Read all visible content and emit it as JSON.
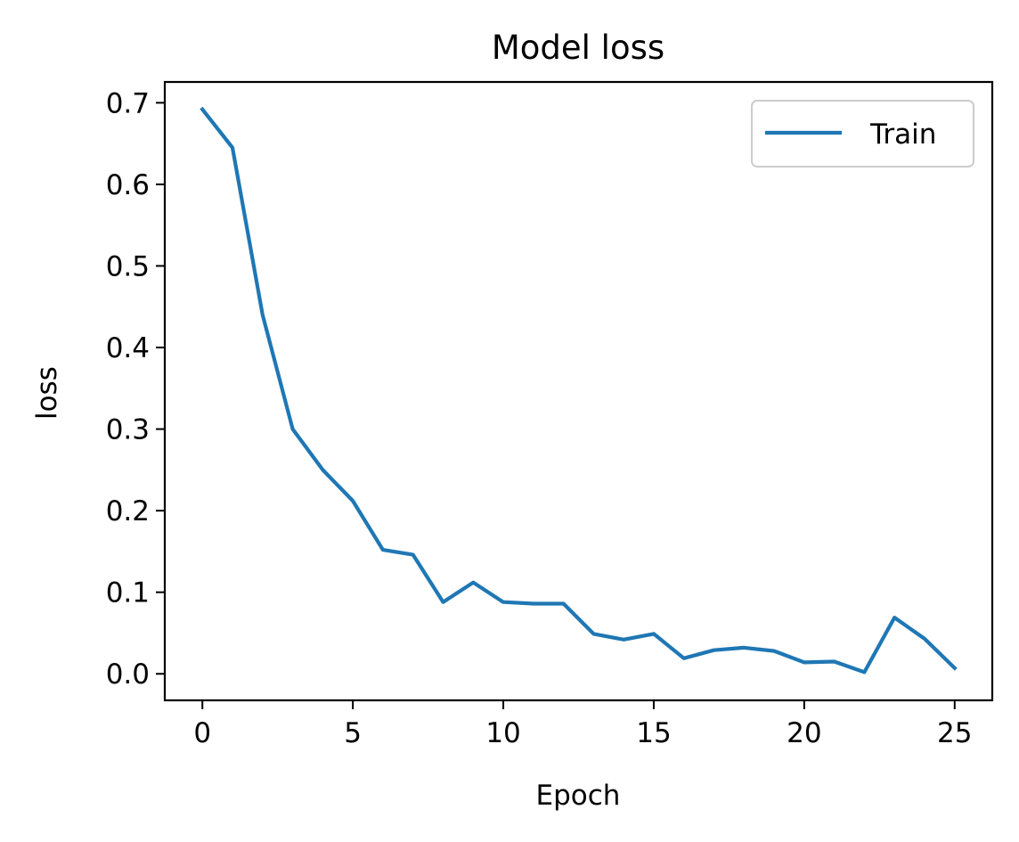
{
  "chart_data": {
    "type": "line",
    "title": "Model loss",
    "xlabel": "Epoch",
    "ylabel": "loss",
    "xlim": [
      -1.25,
      26.25
    ],
    "ylim": [
      -0.0325,
      0.7255
    ],
    "xticks": [
      0,
      5,
      10,
      15,
      20,
      25
    ],
    "xtick_labels": [
      "0",
      "5",
      "10",
      "15",
      "20",
      "25"
    ],
    "yticks": [
      0.0,
      0.1,
      0.2,
      0.3,
      0.4,
      0.5,
      0.6,
      0.7
    ],
    "ytick_labels": [
      "0.0",
      "0.1",
      "0.2",
      "0.3",
      "0.4",
      "0.5",
      "0.6",
      "0.7"
    ],
    "grid": false,
    "legend_position": "upper right",
    "colors": {
      "series": "#1f77b4",
      "axes": "#000000",
      "legend_border": "#cccccc"
    },
    "series": [
      {
        "name": "Train",
        "x": [
          0,
          1,
          2,
          3,
          4,
          5,
          6,
          7,
          8,
          9,
          10,
          11,
          12,
          13,
          14,
          15,
          16,
          17,
          18,
          19,
          20,
          21,
          22,
          23,
          24,
          25
        ],
        "values": [
          0.692,
          0.645,
          0.44,
          0.3,
          0.25,
          0.212,
          0.152,
          0.146,
          0.088,
          0.112,
          0.088,
          0.086,
          0.086,
          0.049,
          0.042,
          0.049,
          0.019,
          0.029,
          0.032,
          0.028,
          0.014,
          0.015,
          0.002,
          0.069,
          0.043,
          0.007
        ]
      }
    ]
  }
}
